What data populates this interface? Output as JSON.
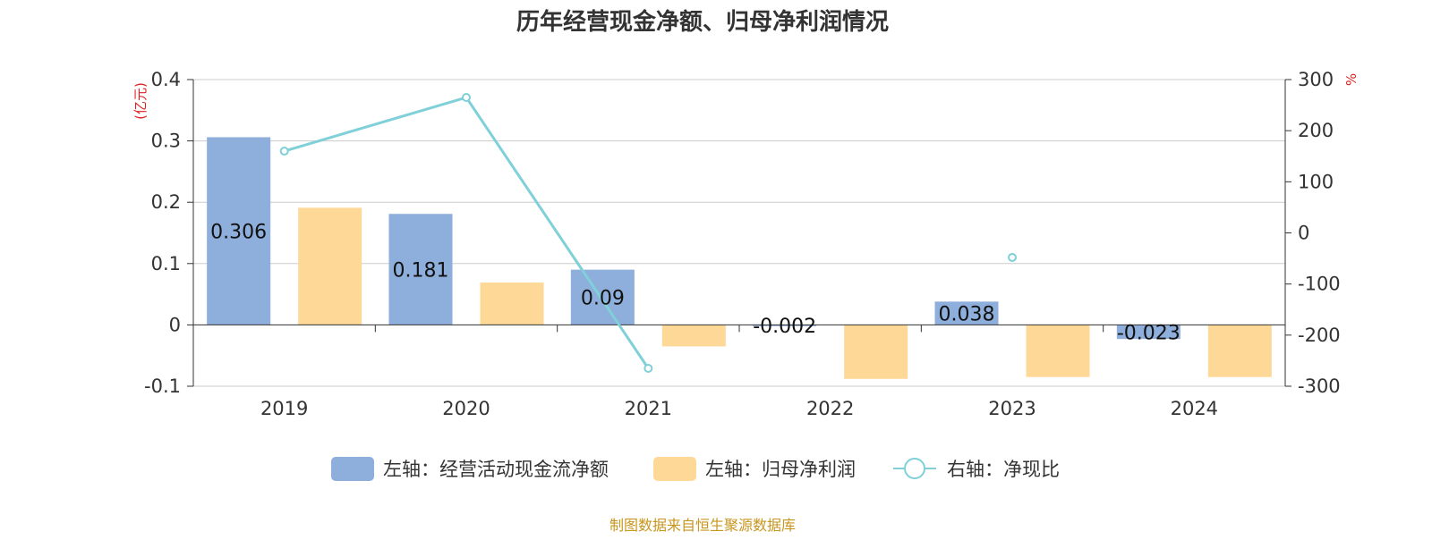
{
  "chart_data": {
    "type": "bar",
    "title": "历年经营现金净额、归母净利润情况",
    "categories": [
      "2019",
      "2020",
      "2021",
      "2022",
      "2023",
      "2024"
    ],
    "left_axis": {
      "unit": "(亿元)",
      "ylim": [
        -0.1,
        0.4
      ],
      "ticks": [
        "-0.1",
        "0",
        "0.1",
        "0.2",
        "0.3",
        "0.4"
      ]
    },
    "right_axis": {
      "unit": "%",
      "ylim": [
        -300,
        300
      ],
      "ticks": [
        "-300",
        "-200",
        "-100",
        "0",
        "100",
        "200",
        "300"
      ]
    },
    "series": [
      {
        "name": "左轴：经营活动现金流净额",
        "type": "bar",
        "axis": "left",
        "color": "#8eaedb",
        "values": [
          0.306,
          0.181,
          0.09,
          -0.002,
          0.038,
          -0.023
        ],
        "labels": [
          "0.306",
          "0.181",
          "0.09",
          "-0.002",
          "0.038",
          "-0.023"
        ]
      },
      {
        "name": "左轴：归母净利润",
        "type": "bar",
        "axis": "left",
        "color": "#fed897",
        "values": [
          0.191,
          0.069,
          -0.035,
          -0.088,
          -0.085,
          -0.085
        ]
      },
      {
        "name": "右轴：净现比",
        "type": "line",
        "axis": "right",
        "color": "#7fd0d8",
        "values": [
          160,
          265,
          -265,
          null,
          -48,
          null
        ]
      }
    ],
    "grid": true,
    "legend_position": "bottom",
    "source": "制图数据来自恒生聚源数据库"
  }
}
